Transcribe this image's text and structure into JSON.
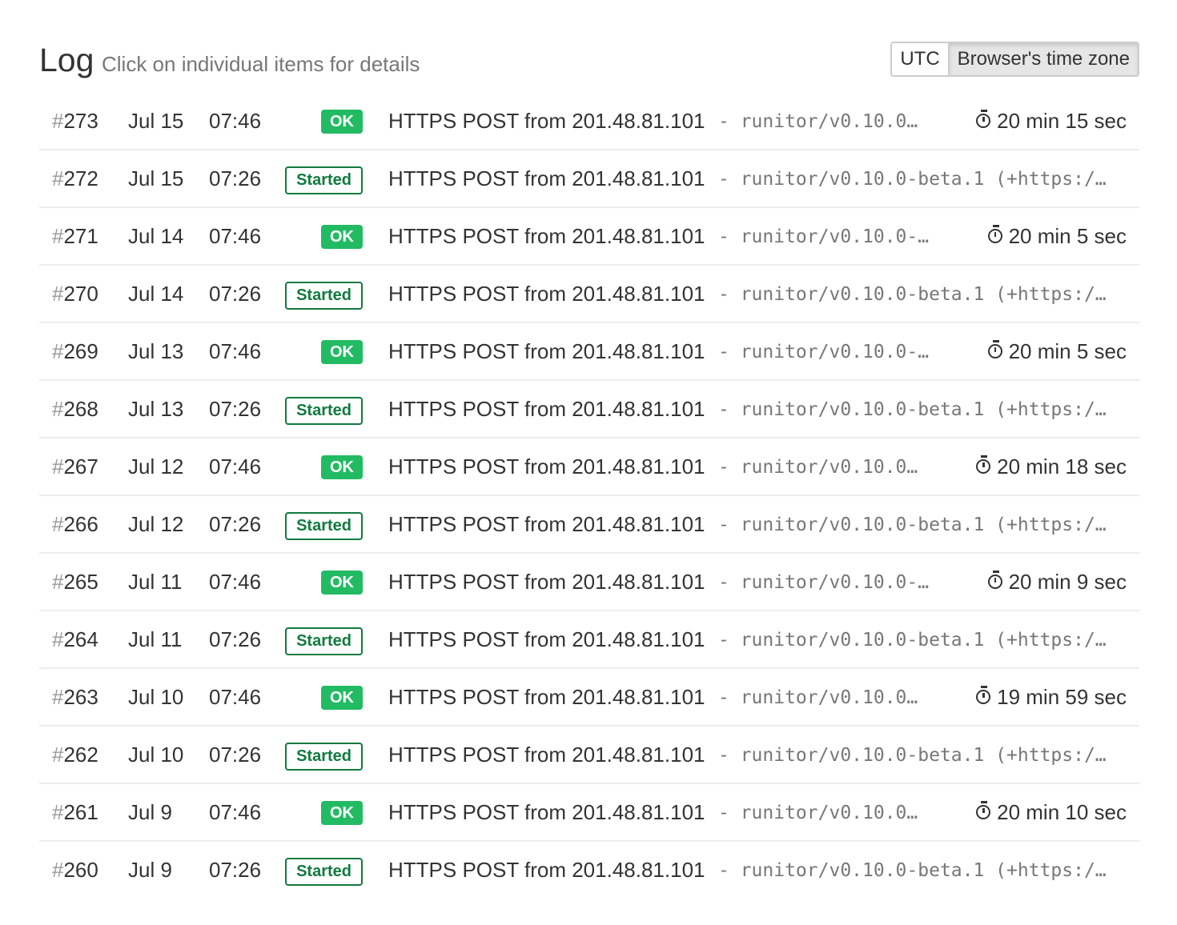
{
  "header": {
    "title": "Log",
    "subtitle": "Click on individual items for details",
    "tz_utc": "UTC",
    "tz_browser": "Browser's time zone",
    "tz_selected": "Browser's time zone"
  },
  "colors": {
    "ok": "#22bb63",
    "started": "#117a3f"
  },
  "rows": [
    {
      "num": "273",
      "date": "Jul 15",
      "time": "07:46",
      "status": "OK",
      "kind": "ok",
      "msg": "HTTPS POST from 201.48.81.101",
      "ua": "- runitor/v0.10.0…",
      "duration": "20 min 15 sec"
    },
    {
      "num": "272",
      "date": "Jul 15",
      "time": "07:26",
      "status": "Started",
      "kind": "started",
      "msg": "HTTPS POST from 201.48.81.101",
      "ua": "- runitor/v0.10.0-beta.1 (+https:/…",
      "duration": ""
    },
    {
      "num": "271",
      "date": "Jul 14",
      "time": "07:46",
      "status": "OK",
      "kind": "ok",
      "msg": "HTTPS POST from 201.48.81.101",
      "ua": "- runitor/v0.10.0-…",
      "duration": "20 min 5 sec"
    },
    {
      "num": "270",
      "date": "Jul 14",
      "time": "07:26",
      "status": "Started",
      "kind": "started",
      "msg": "HTTPS POST from 201.48.81.101",
      "ua": "- runitor/v0.10.0-beta.1 (+https:/…",
      "duration": ""
    },
    {
      "num": "269",
      "date": "Jul 13",
      "time": "07:46",
      "status": "OK",
      "kind": "ok",
      "msg": "HTTPS POST from 201.48.81.101",
      "ua": "- runitor/v0.10.0-…",
      "duration": "20 min 5 sec"
    },
    {
      "num": "268",
      "date": "Jul 13",
      "time": "07:26",
      "status": "Started",
      "kind": "started",
      "msg": "HTTPS POST from 201.48.81.101",
      "ua": "- runitor/v0.10.0-beta.1 (+https:/…",
      "duration": ""
    },
    {
      "num": "267",
      "date": "Jul 12",
      "time": "07:46",
      "status": "OK",
      "kind": "ok",
      "msg": "HTTPS POST from 201.48.81.101",
      "ua": "- runitor/v0.10.0…",
      "duration": "20 min 18 sec"
    },
    {
      "num": "266",
      "date": "Jul 12",
      "time": "07:26",
      "status": "Started",
      "kind": "started",
      "msg": "HTTPS POST from 201.48.81.101",
      "ua": "- runitor/v0.10.0-beta.1 (+https:/…",
      "duration": ""
    },
    {
      "num": "265",
      "date": "Jul 11",
      "time": "07:46",
      "status": "OK",
      "kind": "ok",
      "msg": "HTTPS POST from 201.48.81.101",
      "ua": "- runitor/v0.10.0-…",
      "duration": "20 min 9 sec"
    },
    {
      "num": "264",
      "date": "Jul 11",
      "time": "07:26",
      "status": "Started",
      "kind": "started",
      "msg": "HTTPS POST from 201.48.81.101",
      "ua": "- runitor/v0.10.0-beta.1 (+https:/…",
      "duration": ""
    },
    {
      "num": "263",
      "date": "Jul 10",
      "time": "07:46",
      "status": "OK",
      "kind": "ok",
      "msg": "HTTPS POST from 201.48.81.101",
      "ua": "- runitor/v0.10.0…",
      "duration": "19 min 59 sec"
    },
    {
      "num": "262",
      "date": "Jul 10",
      "time": "07:26",
      "status": "Started",
      "kind": "started",
      "msg": "HTTPS POST from 201.48.81.101",
      "ua": "- runitor/v0.10.0-beta.1 (+https:/…",
      "duration": ""
    },
    {
      "num": "261",
      "date": "Jul 9",
      "time": "07:46",
      "status": "OK",
      "kind": "ok",
      "msg": "HTTPS POST from 201.48.81.101",
      "ua": "- runitor/v0.10.0…",
      "duration": "20 min 10 sec"
    },
    {
      "num": "260",
      "date": "Jul 9",
      "time": "07:26",
      "status": "Started",
      "kind": "started",
      "msg": "HTTPS POST from 201.48.81.101",
      "ua": "- runitor/v0.10.0-beta.1 (+https:/…",
      "duration": ""
    }
  ]
}
